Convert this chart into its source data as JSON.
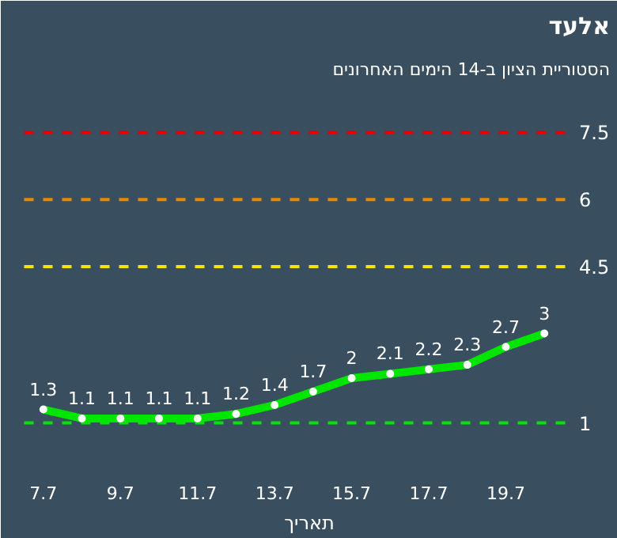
{
  "chart_data": {
    "type": "line",
    "title": "אלעד",
    "subtitle": "הסטוריית הציון ב-14 הימים האחרונים",
    "xlabel": "תאריך",
    "categories": [
      "7.7",
      null,
      "9.7",
      null,
      "11.7",
      null,
      "13.7",
      null,
      "15.7",
      null,
      "17.7",
      null,
      "19.7",
      null
    ],
    "series": [
      {
        "color": "#00e600",
        "values": [
          1.3,
          1.1,
          1.1,
          1.1,
          1.1,
          1.2,
          1.4,
          1.7,
          2,
          2.1,
          2.2,
          2.3,
          2.7,
          3
        ]
      }
    ],
    "ylim": [
      0,
      8.5
    ],
    "tick_labels": "x",
    "data_labels": true,
    "marker": "circle",
    "line_style": "solid",
    "grid": false,
    "ref_lines": [
      {
        "axis": "y",
        "value": 7.5,
        "label": "7.5",
        "color": "#e60000",
        "line_style": "dashed"
      },
      {
        "axis": "y",
        "value": 6,
        "label": "6",
        "color": "#e88a00",
        "line_style": "dashed"
      },
      {
        "axis": "y",
        "value": 4.5,
        "label": "4.5",
        "color": "#f2e600",
        "line_style": "dashed"
      },
      {
        "axis": "y",
        "value": 1,
        "label": "1",
        "color": "#00e600",
        "line_style": "dashed"
      }
    ]
  }
}
